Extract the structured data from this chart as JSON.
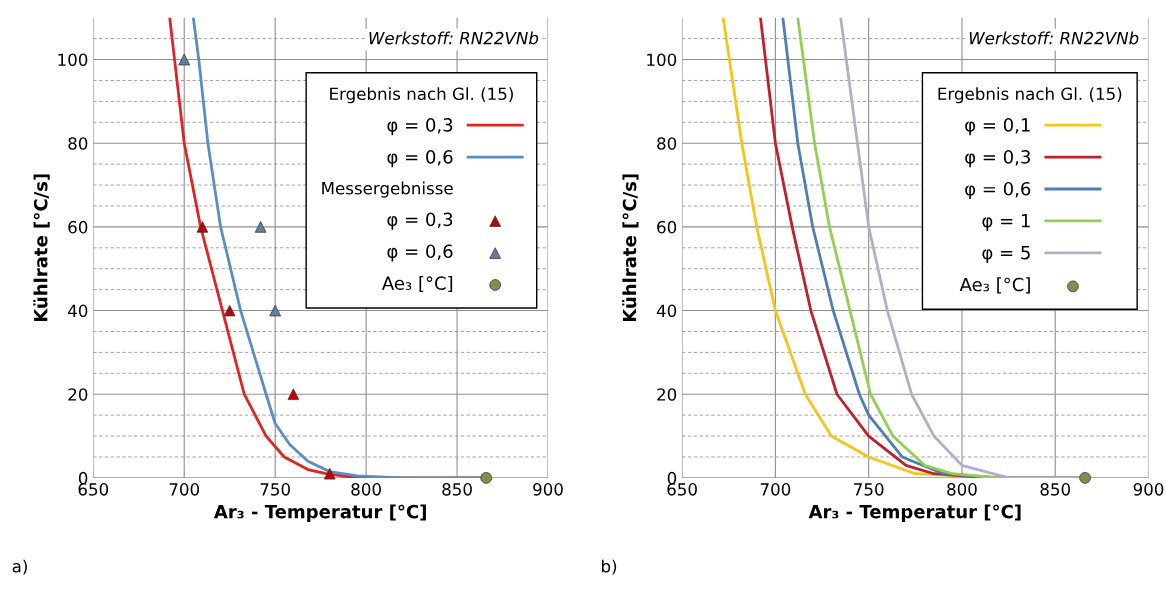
{
  "chart_data": [
    {
      "type": "line",
      "xlabel": "Ar₃ - Temperatur [°C]",
      "ylabel": "Kühlrate [°C/s]",
      "xlim": [
        650,
        900
      ],
      "ylim": [
        0,
        110
      ],
      "xticks": [
        650,
        700,
        750,
        800,
        850,
        900
      ],
      "yticks": [
        0,
        {
          "value": 5,
          "label": null
        },
        {
          "value": 10,
          "label": null
        },
        {
          "value": 15,
          "label": null
        },
        20,
        {
          "value": 25,
          "label": null
        },
        {
          "value": 30,
          "label": null
        },
        {
          "value": 35,
          "label": null
        },
        40,
        {
          "value": 45,
          "label": null
        },
        {
          "value": 50,
          "label": null
        },
        {
          "value": 55,
          "label": null
        },
        60,
        {
          "value": 65,
          "label": null
        },
        {
          "value": 70,
          "label": null
        },
        {
          "value": 75,
          "label": null
        },
        80,
        {
          "value": 85,
          "label": null
        },
        {
          "value": 90,
          "label": null
        },
        {
          "value": 95,
          "label": null
        },
        100,
        {
          "value": 105,
          "label": null
        }
      ],
      "grid": true,
      "legend": "top right",
      "legend_title": "Ergebnis nach Gl. (15)",
      "annotations": [
        "Werkstoff: RN22VNb",
        "a)",
        "Messergebnisse"
      ],
      "series": [
        {
          "name": "φ = 0,3",
          "color": "#e02424",
          "x": [
            692,
            700,
            709,
            721,
            733,
            745,
            755,
            768,
            778,
            790,
            810,
            865
          ],
          "values": [
            110,
            80,
            60,
            40,
            20,
            10,
            5,
            2,
            1,
            0.3,
            0,
            0
          ]
        },
        {
          "name": "φ = 0,6",
          "color": "#5b8cc4",
          "x": [
            705,
            708,
            713,
            720,
            731,
            745,
            750,
            758,
            768,
            780,
            795,
            820,
            865
          ],
          "values": [
            110,
            100,
            80,
            60,
            40,
            20,
            13,
            8,
            4,
            1.5,
            0.5,
            0,
            0
          ]
        },
        {
          "type": "scatter",
          "name": "φ = 0,3",
          "color": "#c00000",
          "marker": "triangle",
          "x": [
            710,
            725,
            760,
            780
          ],
          "values": [
            60,
            40,
            20,
            1
          ]
        },
        {
          "type": "scatter",
          "name": "φ = 0,6",
          "color": "#5b7fa8",
          "marker": "triangle",
          "x": [
            700,
            742,
            750
          ],
          "values": [
            100,
            60,
            40
          ]
        },
        {
          "type": "scatter",
          "name": "Ae₃ [°C]",
          "color": "#7f8f4f",
          "marker": "circle",
          "x": [
            866
          ],
          "values": [
            0
          ]
        }
      ]
    },
    {
      "type": "line",
      "xlabel": "Ar₃ - Temperatur [°C]",
      "ylabel": "Kühlrate [°C/s]",
      "xlim": [
        650,
        900
      ],
      "ylim": [
        0,
        110
      ],
      "xticks": [
        650,
        700,
        750,
        800,
        850,
        900
      ],
      "yticks": [
        0,
        {
          "value": 5,
          "label": null
        },
        {
          "value": 10,
          "label": null
        },
        {
          "value": 15,
          "label": null
        },
        20,
        {
          "value": 25,
          "label": null
        },
        {
          "value": 30,
          "label": null
        },
        {
          "value": 35,
          "label": null
        },
        40,
        {
          "value": 45,
          "label": null
        },
        {
          "value": 50,
          "label": null
        },
        {
          "value": 55,
          "label": null
        },
        60,
        {
          "value": 65,
          "label": null
        },
        {
          "value": 70,
          "label": null
        },
        {
          "value": 75,
          "label": null
        },
        80,
        {
          "value": 85,
          "label": null
        },
        {
          "value": 90,
          "label": null
        },
        {
          "value": 95,
          "label": null
        },
        100,
        {
          "value": 105,
          "label": null
        }
      ],
      "grid": true,
      "legend": "top right",
      "legend_title": "Ergebnis nach Gl. (15)",
      "annotations": [
        "Werkstoff: RN22VNb",
        "b)"
      ],
      "series": [
        {
          "name": "φ = 0,1",
          "color": "#f5c518",
          "x": [
            672,
            682,
            690,
            700,
            716,
            730,
            750,
            775,
            820,
            865
          ],
          "values": [
            110,
            80,
            60,
            40,
            20,
            10,
            5,
            1,
            0,
            0
          ]
        },
        {
          "name": "φ = 0,3",
          "color": "#c0202a",
          "x": [
            692,
            700,
            709,
            719,
            733,
            750,
            770,
            785,
            815,
            865
          ],
          "values": [
            110,
            80,
            60,
            40,
            20,
            10,
            3,
            1,
            0,
            0
          ]
        },
        {
          "name": "φ = 0,6",
          "color": "#4f7db8",
          "x": [
            704,
            712,
            720,
            731,
            745,
            750,
            768,
            790,
            820,
            865
          ],
          "values": [
            110,
            80,
            60,
            40,
            20,
            15,
            5,
            1,
            0,
            0
          ]
        },
        {
          "name": "φ = 1",
          "color": "#92d050",
          "x": [
            712,
            721,
            729,
            740,
            751,
            763,
            780,
            795,
            820,
            865
          ],
          "values": [
            110,
            80,
            60,
            40,
            20,
            10,
            3,
            1,
            0,
            0
          ]
        },
        {
          "name": "φ = 5",
          "color": "#b4acc8",
          "x": [
            735,
            744,
            750,
            760,
            773,
            785,
            800,
            825,
            865
          ],
          "values": [
            110,
            80,
            60,
            40,
            20,
            10,
            3,
            0,
            0
          ]
        },
        {
          "type": "scatter",
          "name": "Ae₃ [°C]",
          "color": "#7f8f4f",
          "marker": "circle",
          "x": [
            866
          ],
          "values": [
            0
          ]
        }
      ]
    }
  ]
}
